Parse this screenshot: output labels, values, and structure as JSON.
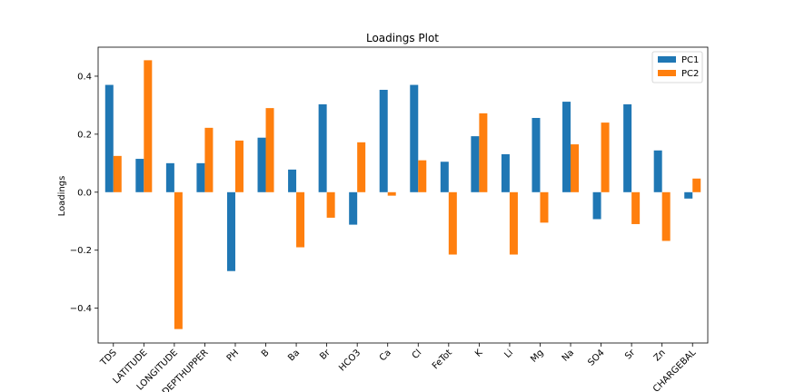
{
  "chart_data": {
    "type": "bar",
    "title": "Loadings Plot",
    "xlabel": "",
    "ylabel": "Loadings",
    "categories": [
      "TDS",
      "LATITUDE",
      "LONGITUDE",
      "DEPTHUPPER",
      "PH",
      "B",
      "Ba",
      "Br",
      "HCO3",
      "Ca",
      "Cl",
      "FeTot",
      "K",
      "Li",
      "Mg",
      "Na",
      "SO4",
      "Sr",
      "Zn",
      "CHARGEBAL"
    ],
    "series": [
      {
        "name": "PC1",
        "color": "#1f77b4",
        "values": [
          0.37,
          0.115,
          0.1,
          0.1,
          -0.272,
          0.188,
          0.078,
          0.303,
          -0.112,
          0.353,
          0.37,
          0.105,
          0.193,
          0.131,
          0.256,
          0.312,
          -0.093,
          0.303,
          0.144,
          -0.022
        ]
      },
      {
        "name": "PC2",
        "color": "#ff7f0e",
        "values": [
          0.125,
          0.455,
          -0.472,
          0.222,
          0.178,
          0.29,
          -0.19,
          -0.088,
          0.172,
          -0.012,
          0.11,
          -0.215,
          0.272,
          -0.215,
          -0.105,
          0.165,
          0.24,
          -0.11,
          -0.168,
          0.047
        ]
      }
    ],
    "ylim": [
      -0.52,
      0.5
    ],
    "yticks": [
      -0.4,
      -0.2,
      0.0,
      0.2,
      0.4
    ],
    "ytick_labels": [
      "−0.4",
      "−0.2",
      "0.0",
      "0.2",
      "0.4"
    ],
    "grid": false,
    "legend_position": "top-right"
  }
}
